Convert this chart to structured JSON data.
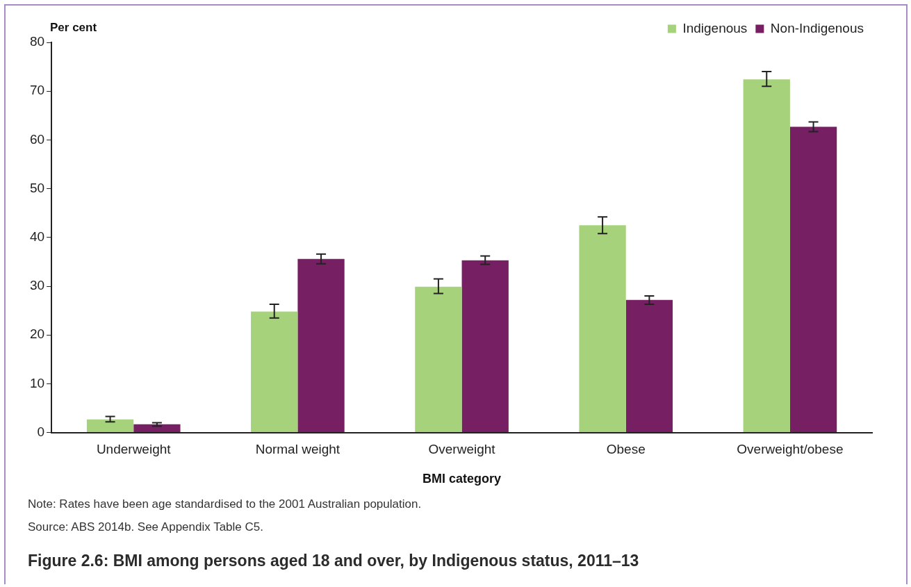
{
  "chart_data": {
    "type": "bar",
    "title": "Figure 2.6: BMI among persons aged 18 and over, by Indigenous status, 2011–13",
    "xlabel": "BMI category",
    "ylabel": "Per cent",
    "categories": [
      "Underweight",
      "Normal weight",
      "Overweight",
      "Obese",
      "Overweight/obese"
    ],
    "series": [
      {
        "name": "Indigenous",
        "color": "#a6d27c",
        "values": [
          2.7,
          24.8,
          29.9,
          42.5,
          72.4
        ],
        "errors": [
          [
            2.2,
            3.3
          ],
          [
            23.5,
            26.3
          ],
          [
            28.5,
            31.5
          ],
          [
            40.8,
            44.2
          ],
          [
            71.0,
            74.0
          ]
        ]
      },
      {
        "name": "Non-Indigenous",
        "color": "#761f63",
        "values": [
          1.7,
          35.6,
          35.3,
          27.2,
          62.7
        ],
        "errors": [
          [
            1.3,
            2.0
          ],
          [
            34.6,
            36.6
          ],
          [
            34.5,
            36.2
          ],
          [
            26.3,
            28.0
          ],
          [
            61.7,
            63.7
          ]
        ]
      }
    ],
    "ylim": [
      0,
      80
    ],
    "yticks": [
      0,
      10,
      20,
      30,
      40,
      50,
      60,
      70,
      80
    ],
    "grid": false,
    "legend": "top right",
    "annotations": [
      "Note: Rates have been age standardised to the 2001 Australian population.",
      "Source: ABS 2014b. See Appendix Table C5."
    ]
  }
}
